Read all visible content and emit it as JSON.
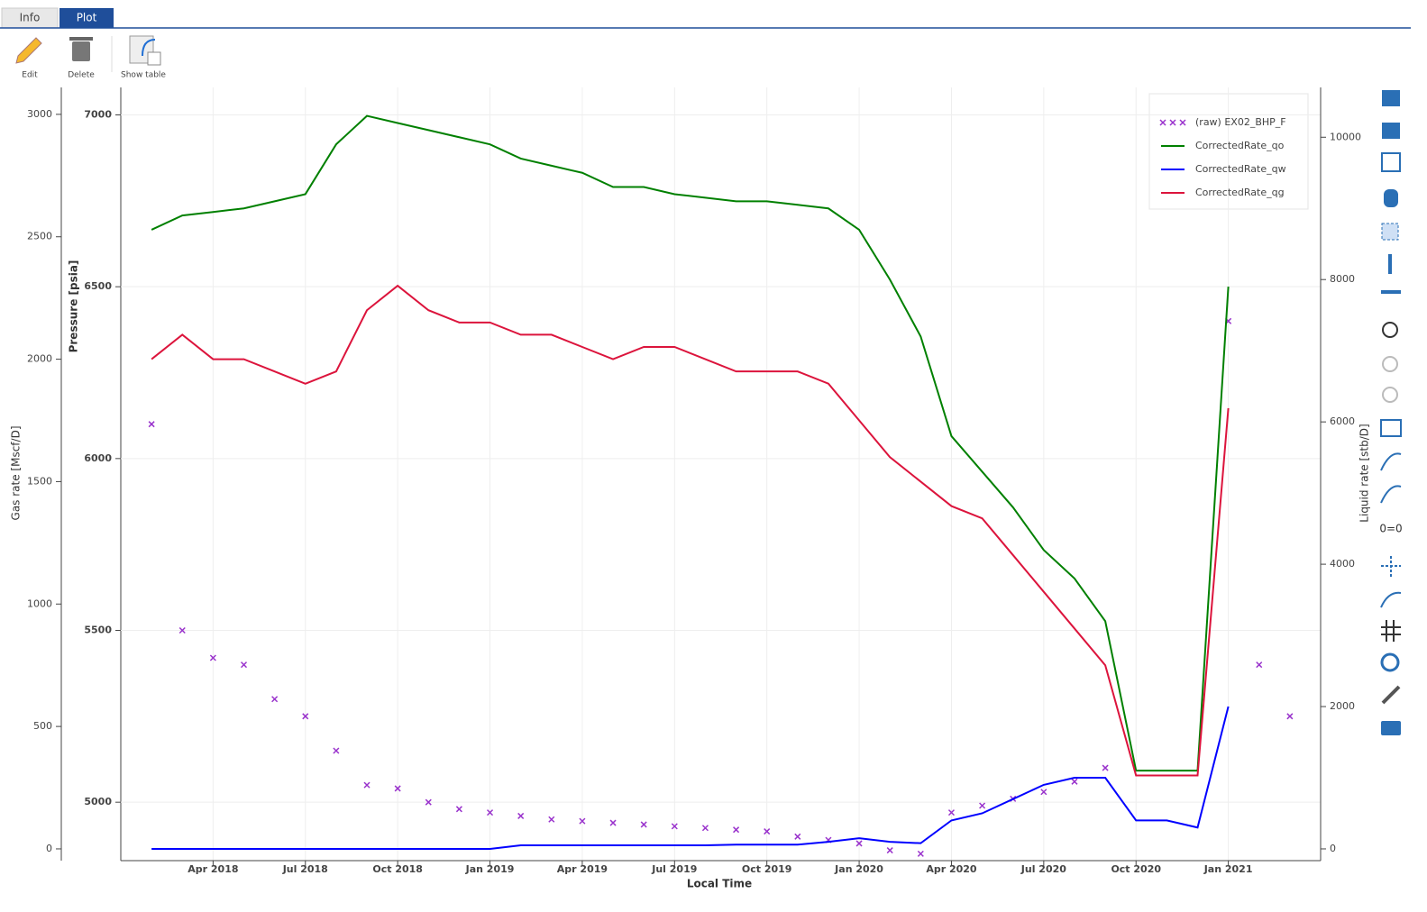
{
  "ui": {
    "tabs": [
      "Info",
      "Plot"
    ],
    "toolbar": [
      "Edit",
      "Delete",
      "Show table"
    ],
    "side_icon_text": "0=0"
  },
  "chart_data": {
    "type": "line",
    "xlabel": "Local Time",
    "ylabel": "Pressure [psia]",
    "y2label": "Liquid rate [stb/D]",
    "y3label": "Gas rate [Mscf/D]",
    "x": [
      "2018-02",
      "2018-03",
      "2018-04",
      "2018-05",
      "2018-06",
      "2018-07",
      "2018-08",
      "2018-09",
      "2018-10",
      "2018-11",
      "2018-12",
      "2019-01",
      "2019-02",
      "2019-03",
      "2019-04",
      "2019-05",
      "2019-06",
      "2019-07",
      "2019-08",
      "2019-09",
      "2019-10",
      "2019-11",
      "2019-12",
      "2020-01",
      "2020-02",
      "2020-03",
      "2020-04",
      "2020-05",
      "2020-06",
      "2020-07",
      "2020-08",
      "2020-09",
      "2020-10",
      "2020-11",
      "2020-12",
      "2021-01",
      "2021-02",
      "2021-03"
    ],
    "xlim": [
      "2018-01",
      "2021-04"
    ],
    "xticks": [
      {
        "value": "2018-04",
        "label": "Apr 2018"
      },
      {
        "value": "2018-07",
        "label": "Jul 2018"
      },
      {
        "value": "2018-10",
        "label": "Oct 2018"
      },
      {
        "value": "2019-01",
        "label": "Jan 2019"
      },
      {
        "value": "2019-04",
        "label": "Apr 2019"
      },
      {
        "value": "2019-07",
        "label": "Jul 2019"
      },
      {
        "value": "2019-10",
        "label": "Oct 2019"
      },
      {
        "value": "2020-01",
        "label": "Jan 2020"
      },
      {
        "value": "2020-04",
        "label": "Apr 2020"
      },
      {
        "value": "2020-07",
        "label": "Jul 2020"
      },
      {
        "value": "2020-10",
        "label": "Oct 2020"
      },
      {
        "value": "2021-01",
        "label": "Jan 2021"
      }
    ],
    "ylim": [
      4830,
      7080
    ],
    "yticks": [
      5000,
      5500,
      6000,
      6500,
      7000
    ],
    "y2lim": [
      -165,
      10700
    ],
    "y2ticks": [
      0,
      2000,
      4000,
      6000,
      8000,
      10000
    ],
    "y3lim": [
      -48,
      3110
    ],
    "y3ticks": [
      0,
      500,
      1000,
      1500,
      2000,
      2500,
      3000
    ],
    "grid": true,
    "series": [
      {
        "name": "(raw) EX02_BHP_F",
        "type": "scatter",
        "color": "#9932cc",
        "axis": "y",
        "values": [
          6100,
          5500,
          5420,
          5400,
          5300,
          5250,
          5150,
          5050,
          5040,
          5000,
          4980,
          4970,
          4960,
          4950,
          4945,
          4940,
          4935,
          4930,
          4925,
          4920,
          4915,
          4900,
          4890,
          4880,
          4860,
          4850,
          4970,
          4990,
          5010,
          5030,
          5060,
          5100,
          null,
          null,
          null,
          6400,
          5400,
          5250
        ]
      },
      {
        "name": "CorrectedRate_qo",
        "type": "line",
        "color": "#008000",
        "axis": "y2",
        "values": [
          8700,
          8900,
          8950,
          9000,
          9100,
          9200,
          9900,
          10300,
          10200,
          10100,
          10000,
          9900,
          9700,
          9600,
          9500,
          9300,
          9300,
          9200,
          9150,
          9100,
          9100,
          9050,
          9000,
          8700,
          8000,
          7200,
          5800,
          5300,
          4800,
          4200,
          3800,
          3200,
          1100,
          1100,
          1100,
          7900,
          null,
          null
        ]
      },
      {
        "name": "CorrectedRate_qw",
        "type": "line",
        "color": "#0000ff",
        "axis": "y2",
        "values": [
          0,
          0,
          0,
          0,
          0,
          0,
          0,
          0,
          0,
          0,
          0,
          0,
          50,
          50,
          50,
          50,
          50,
          50,
          50,
          60,
          60,
          60,
          100,
          150,
          100,
          80,
          400,
          500,
          700,
          900,
          1000,
          1000,
          400,
          400,
          300,
          2000,
          null,
          null
        ]
      },
      {
        "name": "CorrectedRate_qg",
        "type": "line",
        "color": "#dc143c",
        "axis": "y3",
        "values": [
          2000,
          2100,
          2000,
          2000,
          1950,
          1900,
          1950,
          2200,
          2300,
          2200,
          2150,
          2150,
          2100,
          2100,
          2050,
          2000,
          2050,
          2050,
          2000,
          1950,
          1950,
          1950,
          1900,
          1750,
          1600,
          1500,
          1400,
          1350,
          1200,
          1050,
          900,
          750,
          300,
          300,
          300,
          1800,
          null,
          null
        ]
      }
    ]
  }
}
